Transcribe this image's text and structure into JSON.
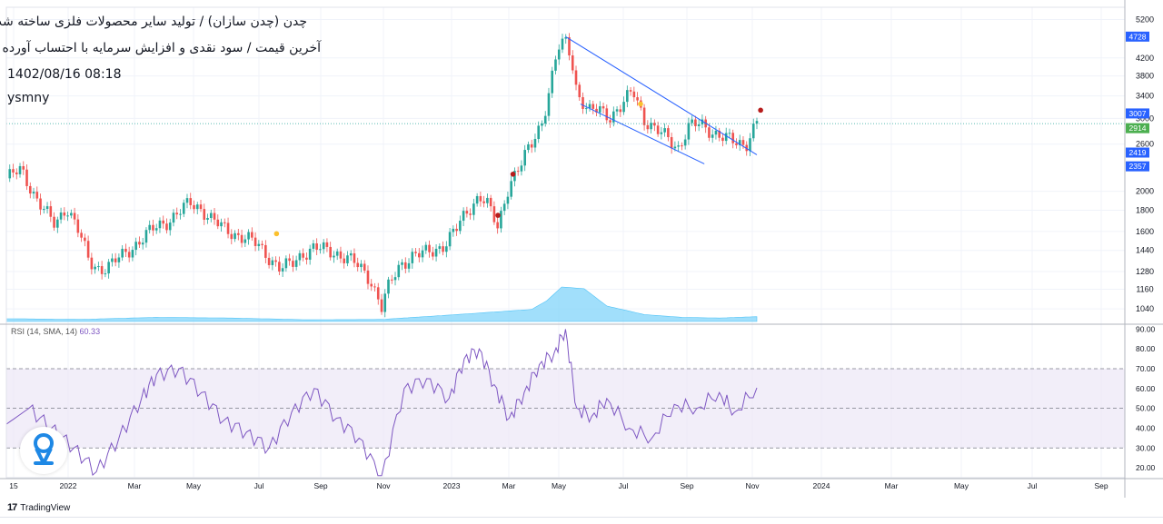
{
  "header": {
    "title_line1": "چدن (چدن سازان) / تولید سایر محصولات فلزی ساخته شده",
    "title_line2": "آخرین قیمت / سود نقدی و افزایش سرمایه با احتساب آورده /",
    "datetime": "1402/08/16 08:18",
    "author": "ysmny"
  },
  "rsi": {
    "label": "RSI (14, SMA, 14)",
    "value": "60.33"
  },
  "footer": {
    "logo": "17",
    "brand": "TradingView"
  },
  "colors": {
    "up": "#26a69a",
    "down": "#ef5350",
    "price_label_blue": "#2962ff",
    "price_label_green": "#4caf50",
    "rsi_line": "#7e57c2",
    "rsi_band": "#ede7f6",
    "volume_area": "#81d4fa",
    "trendline": "#2962ff",
    "dot_red": "#b71c1c",
    "dot_yellow": "#fbc02d"
  },
  "chart_data": [
    {
      "type": "candlestick",
      "title": "",
      "x_tick_labels": [
        "15",
        "2022",
        "Mar",
        "May",
        "Jul",
        "Sep",
        "Nov",
        "2023",
        "Mar",
        "May",
        "Jul",
        "Sep",
        "Nov",
        "2024",
        "Mar",
        "May",
        "Jul",
        "Sep"
      ],
      "y_tick_labels": [
        "1040",
        "1160",
        "1280",
        "1440",
        "1600",
        "1800",
        "2000",
        "2600",
        "3000",
        "3400",
        "3800",
        "4200",
        "5200"
      ],
      "y_scale": "log",
      "ylim": [
        960,
        5400
      ],
      "price_labels": [
        "4728",
        "3007",
        "2914",
        "2419",
        "2357"
      ],
      "close_path": [
        [
          0,
          2150
        ],
        [
          0.02,
          2250
        ],
        [
          0.035,
          2000
        ],
        [
          0.05,
          1800
        ],
        [
          0.065,
          1650
        ],
        [
          0.08,
          1850
        ],
        [
          0.095,
          1620
        ],
        [
          0.11,
          1350
        ],
        [
          0.125,
          1300
        ],
        [
          0.14,
          1330
        ],
        [
          0.155,
          1400
        ],
        [
          0.17,
          1480
        ],
        [
          0.185,
          1560
        ],
        [
          0.2,
          1640
        ],
        [
          0.215,
          1700
        ],
        [
          0.23,
          1780
        ],
        [
          0.245,
          1870
        ],
        [
          0.26,
          1820
        ],
        [
          0.275,
          1700
        ],
        [
          0.29,
          1620
        ],
        [
          0.305,
          1580
        ],
        [
          0.32,
          1540
        ],
        [
          0.335,
          1480
        ],
        [
          0.35,
          1390
        ],
        [
          0.365,
          1300
        ],
        [
          0.38,
          1330
        ],
        [
          0.395,
          1420
        ],
        [
          0.41,
          1460
        ],
        [
          0.425,
          1440
        ],
        [
          0.44,
          1420
        ],
        [
          0.455,
          1380
        ],
        [
          0.47,
          1310
        ],
        [
          0.485,
          1230
        ],
        [
          0.5,
          1050
        ],
        [
          0.51,
          1180
        ],
        [
          0.525,
          1330
        ],
        [
          0.54,
          1400
        ],
        [
          0.555,
          1410
        ],
        [
          0.57,
          1440
        ],
        [
          0.585,
          1500
        ],
        [
          0.6,
          1620
        ],
        [
          0.615,
          1800
        ],
        [
          0.63,
          1960
        ],
        [
          0.64,
          1870
        ],
        [
          0.655,
          1620
        ],
        [
          0.67,
          2100
        ],
        [
          0.685,
          2300
        ],
        [
          0.7,
          2600
        ],
        [
          0.715,
          3000
        ],
        [
          0.725,
          3600
        ],
        [
          0.735,
          4400
        ],
        [
          0.745,
          4600
        ],
        [
          0.752,
          4300
        ],
        [
          0.76,
          3500
        ],
        [
          0.775,
          3100
        ],
        [
          0.79,
          3150
        ],
        [
          0.805,
          3050
        ],
        [
          0.82,
          3200
        ],
        [
          0.835,
          3500
        ],
        [
          0.85,
          3000
        ],
        [
          0.865,
          2800
        ],
        [
          0.88,
          2700
        ],
        [
          0.895,
          2550
        ],
        [
          0.91,
          2870
        ],
        [
          0.925,
          2900
        ],
        [
          0.94,
          2800
        ],
        [
          0.955,
          2700
        ],
        [
          0.97,
          2620
        ],
        [
          0.985,
          2600
        ],
        [
          1.0,
          2950
        ]
      ],
      "volume_path": [
        [
          0,
          0.08
        ],
        [
          0.1,
          0.06
        ],
        [
          0.2,
          0.12
        ],
        [
          0.3,
          0.1
        ],
        [
          0.4,
          0.05
        ],
        [
          0.5,
          0.06
        ],
        [
          0.6,
          0.2
        ],
        [
          0.7,
          0.35
        ],
        [
          0.72,
          0.6
        ],
        [
          0.74,
          1.0
        ],
        [
          0.77,
          0.95
        ],
        [
          0.8,
          0.45
        ],
        [
          0.85,
          0.2
        ],
        [
          0.9,
          0.12
        ],
        [
          0.95,
          0.1
        ],
        [
          1.0,
          0.14
        ]
      ],
      "trendlines": [
        {
          "from": [
            0.745,
            4728
          ],
          "to": [
            1.0,
            2450
          ]
        },
        {
          "from": [
            0.765,
            3250
          ],
          "to": [
            0.93,
            2330
          ]
        }
      ],
      "markers": [
        {
          "x": 0.36,
          "y": 1580,
          "color": "yellow"
        },
        {
          "x": 0.675,
          "y": 2200,
          "color": "red"
        },
        {
          "x": 0.655,
          "y": 1750,
          "color": "red"
        },
        {
          "x": 1.005,
          "y": 3140,
          "color": "red"
        },
        {
          "x": 0.845,
          "y": 3250,
          "color": "yellow"
        }
      ]
    },
    {
      "type": "line",
      "title": "",
      "y_tick_labels": [
        "20.00",
        "30.00",
        "40.00",
        "50.00",
        "60.00",
        "70.00",
        "80.00",
        "90.00"
      ],
      "ylim": [
        15,
        92
      ],
      "band": [
        30,
        70
      ],
      "midline": 50,
      "series": [
        {
          "x": [
            0,
            0.03,
            0.06,
            0.09,
            0.12,
            0.15,
            0.18,
            0.2,
            0.23,
            0.26,
            0.29,
            0.32,
            0.35,
            0.38,
            0.41,
            0.44,
            0.47,
            0.5,
            0.53,
            0.56,
            0.59,
            0.61,
            0.63,
            0.65,
            0.67,
            0.69,
            0.71,
            0.73,
            0.745,
            0.76,
            0.78,
            0.8,
            0.83,
            0.86,
            0.89,
            0.92,
            0.95,
            0.97,
            1.0
          ],
          "values": [
            42,
            50,
            40,
            30,
            18,
            35,
            55,
            67,
            70,
            58,
            44,
            38,
            30,
            48,
            60,
            45,
            35,
            15,
            60,
            65,
            55,
            75,
            80,
            62,
            45,
            58,
            72,
            78,
            90,
            50,
            46,
            55,
            40,
            35,
            52,
            50,
            58,
            48,
            60.33
          ]
        }
      ]
    }
  ]
}
